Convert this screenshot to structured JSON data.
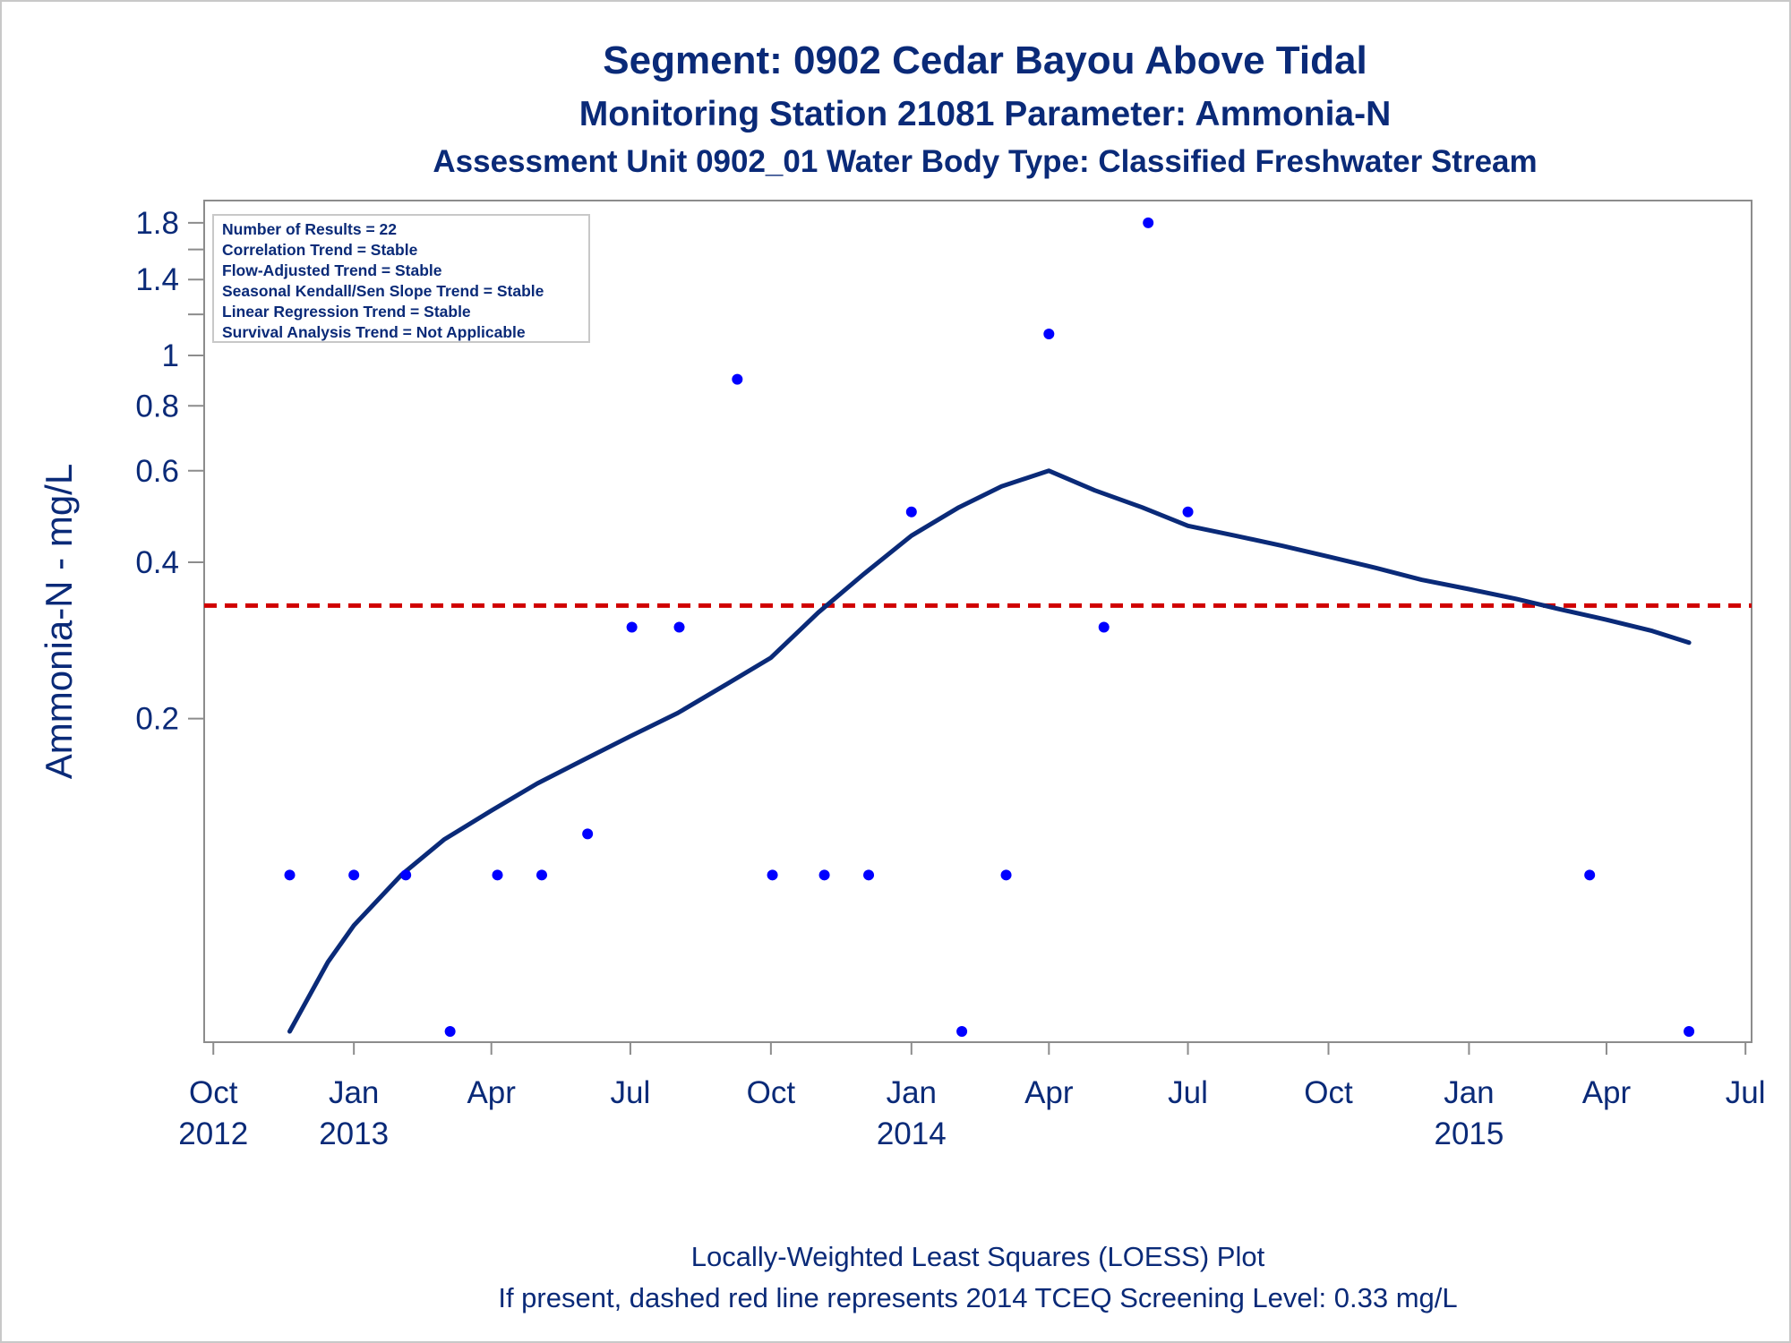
{
  "chart_data": {
    "type": "scatter",
    "title": "Segment: 0902  Cedar Bayou Above Tidal",
    "subtitle": "Monitoring Station 21081 Parameter: Ammonia-N",
    "subtitle2": "Assessment Unit 0902_01   Water Body Type: Classified Freshwater Stream",
    "ylabel": "Ammonia-N - mg/L",
    "xlabel": "",
    "y_scale": "log",
    "ylim": [
      0.05,
      1.85
    ],
    "xlim": [
      "2012-09-25",
      "2015-07-05"
    ],
    "grid": false,
    "yticks": [
      {
        "value": 0.2,
        "label": "0.2"
      },
      {
        "value": 0.4,
        "label": "0.4"
      },
      {
        "value": 0.6,
        "label": "0.6"
      },
      {
        "value": 0.8,
        "label": "0.8"
      },
      {
        "value": 1.0,
        "label": "1"
      },
      {
        "value": 1.4,
        "label": "1.4"
      },
      {
        "value": 1.8,
        "label": "1.8"
      }
    ],
    "yminorticks": [
      1.2,
      1.6
    ],
    "xticks": [
      {
        "date": "2012-10-01",
        "label1": "Oct",
        "label2": "2012"
      },
      {
        "date": "2013-01-01",
        "label1": "Jan",
        "label2": "2013"
      },
      {
        "date": "2013-04-01",
        "label1": "Apr",
        "label2": ""
      },
      {
        "date": "2013-07-01",
        "label1": "Jul",
        "label2": ""
      },
      {
        "date": "2013-10-01",
        "label1": "Oct",
        "label2": ""
      },
      {
        "date": "2014-01-01",
        "label1": "Jan",
        "label2": "2014"
      },
      {
        "date": "2014-04-01",
        "label1": "Apr",
        "label2": ""
      },
      {
        "date": "2014-07-01",
        "label1": "Jul",
        "label2": ""
      },
      {
        "date": "2014-10-01",
        "label1": "Oct",
        "label2": ""
      },
      {
        "date": "2015-01-01",
        "label1": "Jan",
        "label2": "2015"
      },
      {
        "date": "2015-04-01",
        "label1": "Apr",
        "label2": ""
      },
      {
        "date": "2015-07-01",
        "label1": "Jul",
        "label2": ""
      }
    ],
    "series": [
      {
        "type": "scatter",
        "color": "#0000ff",
        "points": [
          {
            "date": "2012-11-20",
            "value": 0.1
          },
          {
            "date": "2013-01-01",
            "value": 0.1
          },
          {
            "date": "2013-02-04",
            "value": 0.1
          },
          {
            "date": "2013-03-05",
            "value": 0.05
          },
          {
            "date": "2013-04-05",
            "value": 0.1
          },
          {
            "date": "2013-05-04",
            "value": 0.1
          },
          {
            "date": "2013-06-03",
            "value": 0.12
          },
          {
            "date": "2013-07-02",
            "value": 0.3
          },
          {
            "date": "2013-08-02",
            "value": 0.3
          },
          {
            "date": "2013-09-09",
            "value": 0.9
          },
          {
            "date": "2013-10-02",
            "value": 0.1
          },
          {
            "date": "2013-11-05",
            "value": 0.1
          },
          {
            "date": "2013-12-04",
            "value": 0.1
          },
          {
            "date": "2014-01-01",
            "value": 0.5
          },
          {
            "date": "2014-02-03",
            "value": 0.05
          },
          {
            "date": "2014-03-04",
            "value": 0.1
          },
          {
            "date": "2014-04-01",
            "value": 1.1
          },
          {
            "date": "2014-05-07",
            "value": 0.3
          },
          {
            "date": "2014-06-05",
            "value": 1.8
          },
          {
            "date": "2014-07-01",
            "value": 0.5
          },
          {
            "date": "2015-03-21",
            "value": 0.1
          },
          {
            "date": "2015-05-25",
            "value": 0.05
          }
        ]
      },
      {
        "type": "line",
        "color": "#0a2a78",
        "points": [
          {
            "date": "2012-11-20",
            "value": 0.05
          },
          {
            "date": "2012-12-15",
            "value": 0.068
          },
          {
            "date": "2013-01-01",
            "value": 0.08
          },
          {
            "date": "2013-02-01",
            "value": 0.1
          },
          {
            "date": "2013-03-01",
            "value": 0.117
          },
          {
            "date": "2013-04-01",
            "value": 0.133
          },
          {
            "date": "2013-05-01",
            "value": 0.15
          },
          {
            "date": "2013-06-01",
            "value": 0.167
          },
          {
            "date": "2013-07-01",
            "value": 0.185
          },
          {
            "date": "2013-08-01",
            "value": 0.205
          },
          {
            "date": "2013-09-01",
            "value": 0.232
          },
          {
            "date": "2013-10-01",
            "value": 0.262
          },
          {
            "date": "2013-11-01",
            "value": 0.32
          },
          {
            "date": "2013-12-01",
            "value": 0.38
          },
          {
            "date": "2014-01-01",
            "value": 0.45
          },
          {
            "date": "2014-02-01",
            "value": 0.51
          },
          {
            "date": "2014-03-01",
            "value": 0.56
          },
          {
            "date": "2014-04-01",
            "value": 0.6
          },
          {
            "date": "2014-05-01",
            "value": 0.55
          },
          {
            "date": "2014-06-01",
            "value": 0.51
          },
          {
            "date": "2014-07-01",
            "value": 0.47
          },
          {
            "date": "2014-08-01",
            "value": 0.45
          },
          {
            "date": "2014-09-01",
            "value": 0.43
          },
          {
            "date": "2014-10-01",
            "value": 0.41
          },
          {
            "date": "2014-11-01",
            "value": 0.39
          },
          {
            "date": "2014-12-01",
            "value": 0.37
          },
          {
            "date": "2015-01-01",
            "value": 0.355
          },
          {
            "date": "2015-02-01",
            "value": 0.34
          },
          {
            "date": "2015-03-01",
            "value": 0.325
          },
          {
            "date": "2015-04-01",
            "value": 0.31
          },
          {
            "date": "2015-05-01",
            "value": 0.295
          },
          {
            "date": "2015-05-25",
            "value": 0.28
          }
        ]
      }
    ],
    "reference_line": {
      "value": 0.33,
      "color": "#d00000",
      "style": "dashed"
    },
    "inset": {
      "lines": [
        "Number of Results = 22",
        "Correlation Trend = Stable",
        "Flow-Adjusted Trend = Stable",
        "Seasonal Kendall/Sen Slope Trend = Stable",
        "Linear Regression Trend = Stable",
        "Survival Analysis Trend = Not Applicable"
      ]
    },
    "footnote": [
      "Locally-Weighted Least Squares (LOESS) Plot",
      "If present, dashed red line represents 2014 TCEQ Screening Level: 0.33 mg/L"
    ]
  }
}
